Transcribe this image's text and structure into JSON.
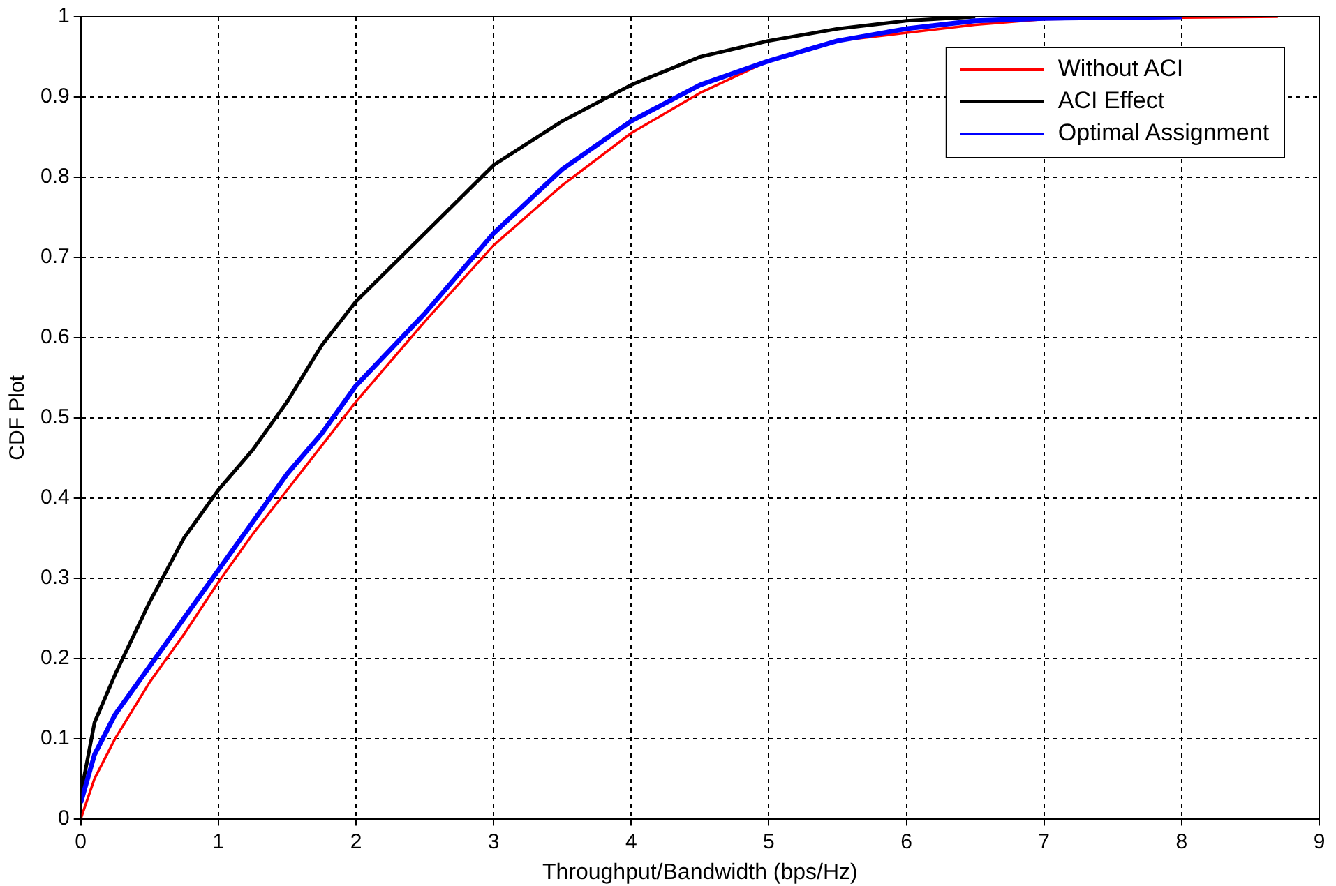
{
  "chart_data": {
    "type": "line",
    "xlabel": "Throughput/Bandwidth (bps/Hz)",
    "ylabel": "CDF Plot",
    "xlim": [
      0,
      9
    ],
    "xticks": [
      0,
      1,
      2,
      3,
      4,
      5,
      6,
      7,
      8,
      9
    ],
    "ylim": [
      0,
      1
    ],
    "yticks": [
      0,
      0.1,
      0.2,
      0.3,
      0.4,
      0.5,
      0.6,
      0.7,
      0.8,
      0.9,
      1
    ],
    "grid": true,
    "legend": "top right",
    "marker": "none",
    "line_style": "solid",
    "series": [
      {
        "name": "Without ACI",
        "color": "#ff0000",
        "x": [
          0,
          0.1,
          0.25,
          0.5,
          0.75,
          1,
          1.25,
          1.5,
          1.75,
          2,
          2.5,
          3,
          3.5,
          4,
          4.5,
          5,
          5.5,
          6,
          6.5,
          7,
          8,
          8.7
        ],
        "values": [
          0,
          0.05,
          0.1,
          0.17,
          0.23,
          0.295,
          0.355,
          0.41,
          0.465,
          0.52,
          0.62,
          0.715,
          0.79,
          0.855,
          0.905,
          0.945,
          0.97,
          0.98,
          0.99,
          0.997,
          0.999,
          1
        ]
      },
      {
        "name": "ACI Effect",
        "color": "#000000",
        "x": [
          0,
          0.1,
          0.25,
          0.5,
          0.75,
          1,
          1.25,
          1.5,
          1.75,
          2,
          2.5,
          3,
          3.5,
          4,
          4.5,
          5,
          5.5,
          6,
          6.5
        ],
        "values": [
          0.03,
          0.12,
          0.18,
          0.27,
          0.35,
          0.41,
          0.46,
          0.52,
          0.59,
          0.645,
          0.73,
          0.815,
          0.87,
          0.915,
          0.95,
          0.97,
          0.985,
          0.995,
          1
        ]
      },
      {
        "name": "Optimal Assignment",
        "color": "#0000ff",
        "x": [
          0,
          0.1,
          0.25,
          0.5,
          0.75,
          1,
          1.25,
          1.5,
          1.75,
          2,
          2.5,
          3,
          3.5,
          4,
          4.5,
          5,
          5.5,
          6,
          6.5,
          7,
          8
        ],
        "values": [
          0.02,
          0.08,
          0.13,
          0.19,
          0.25,
          0.31,
          0.37,
          0.43,
          0.48,
          0.54,
          0.63,
          0.73,
          0.81,
          0.87,
          0.915,
          0.945,
          0.97,
          0.985,
          0.995,
          0.998,
          1
        ]
      }
    ]
  }
}
